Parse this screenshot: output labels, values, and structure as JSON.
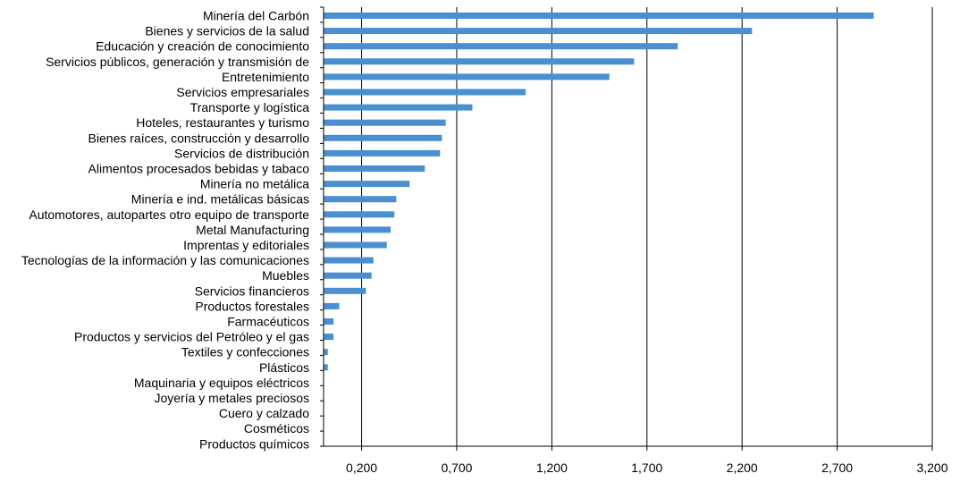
{
  "chart_data": {
    "type": "bar",
    "orientation": "horizontal",
    "categories": [
      "Minería del Carbón",
      "Bienes y servicios de la salud",
      "Educación y creación de conocimiento",
      "Servicios públicos, generación y transmisión de",
      "Entretenimiento",
      "Servicios empresariales",
      "Transporte y logística",
      "Hoteles, restaurantes y turismo",
      "Bienes raíces, construcción y desarrollo",
      "Servicios de distribución",
      "Alimentos procesados bebidas y tabaco",
      "Minería no metálica",
      "Minería e ind. metálicas básicas",
      "Automotores, autopartes otro equipo de transporte",
      "Metal Manufacturing",
      "Imprentas y editoriales",
      "Tecnologías de la información y las comunicaciones",
      "Muebles",
      "Servicios financieros",
      "Productos forestales",
      "Farmacéuticos",
      "Productos y servicios del Petróleo y el gas",
      "Textiles y confecciones",
      "Plásticos",
      "Maquinaria y equipos eléctricos",
      "Joyería y metales preciosos",
      "Cuero y calzado",
      "Cosméticos",
      "Productos químicos"
    ],
    "values": [
      2.89,
      2.25,
      1.86,
      1.63,
      1.5,
      1.06,
      0.78,
      0.64,
      0.62,
      0.61,
      0.53,
      0.45,
      0.38,
      0.37,
      0.35,
      0.33,
      0.26,
      0.25,
      0.22,
      0.08,
      0.05,
      0.05,
      0.02,
      0.02,
      0.0,
      0.0,
      0.0,
      0.0,
      0.0
    ],
    "x_ticks": [
      "0,200",
      "0,700",
      "1,200",
      "1,700",
      "2,200",
      "2,700",
      "3,200"
    ],
    "x_tick_values": [
      0.2,
      0.7,
      1.2,
      1.7,
      2.2,
      2.7,
      3.2
    ],
    "xlim": [
      0,
      3.2
    ],
    "grid": "vertical",
    "bar_color": "#4a90d0"
  }
}
